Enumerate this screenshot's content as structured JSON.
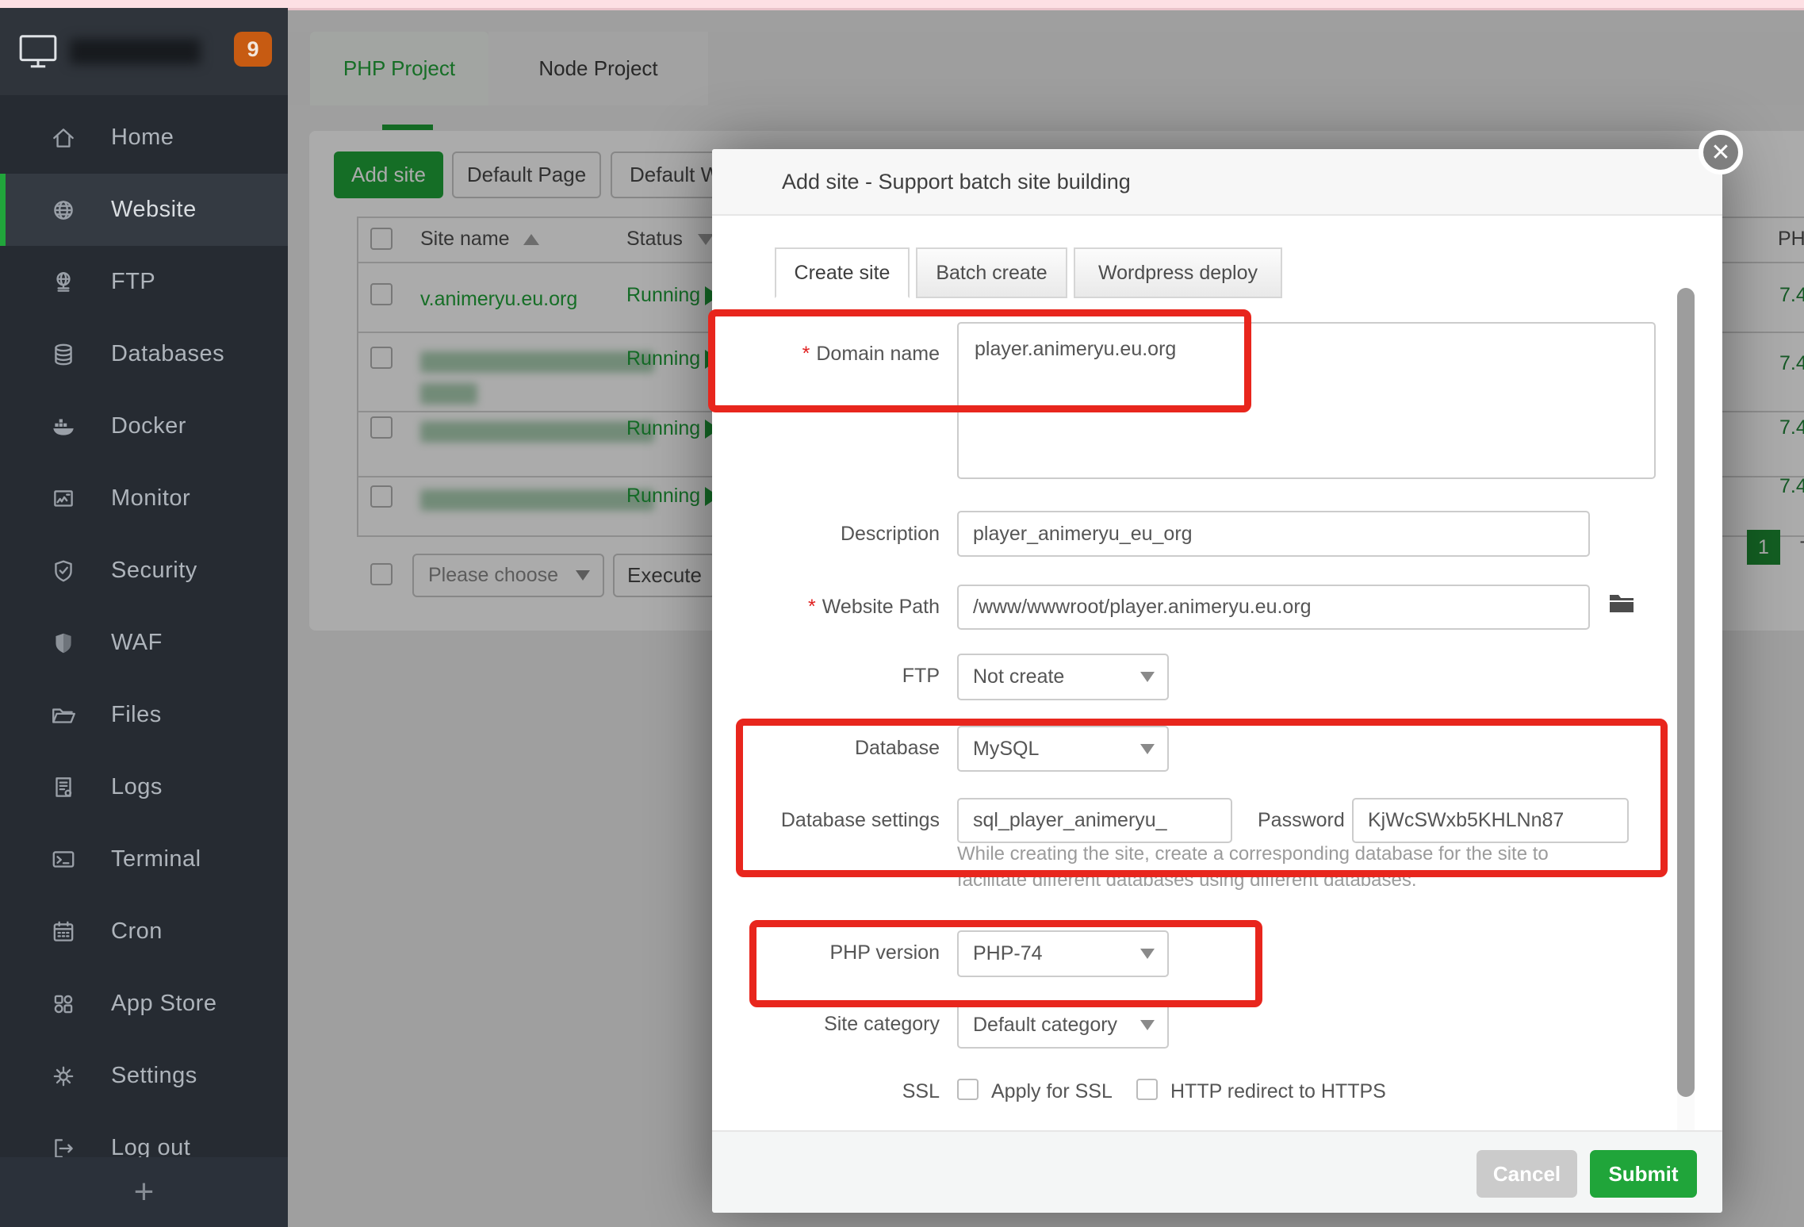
{
  "colors": {
    "accent_green": "#20a53a",
    "annotation_red": "#e8261d",
    "pink_strip": "#fde0e4",
    "badge_orange": "#c75b12",
    "running_green": "#1e9e3a"
  },
  "sidebar": {
    "logo_badge": "9",
    "items": [
      {
        "label": "Home",
        "icon": "home-icon",
        "active": false
      },
      {
        "label": "Website",
        "icon": "globe-icon",
        "active": true
      },
      {
        "label": "FTP",
        "icon": "ftp-icon",
        "active": false
      },
      {
        "label": "Databases",
        "icon": "database-icon",
        "active": false
      },
      {
        "label": "Docker",
        "icon": "docker-icon",
        "active": false
      },
      {
        "label": "Monitor",
        "icon": "monitor-icon",
        "active": false
      },
      {
        "label": "Security",
        "icon": "shield-check-icon",
        "active": false
      },
      {
        "label": "WAF",
        "icon": "shield-solid-icon",
        "active": false
      },
      {
        "label": "Files",
        "icon": "folder-icon",
        "active": false
      },
      {
        "label": "Logs",
        "icon": "log-file-icon",
        "active": false
      },
      {
        "label": "Terminal",
        "icon": "terminal-icon",
        "active": false
      },
      {
        "label": "Cron",
        "icon": "calendar-icon",
        "active": false
      },
      {
        "label": "App Store",
        "icon": "grid-icon",
        "active": false
      },
      {
        "label": "Settings",
        "icon": "gear-icon",
        "active": false
      },
      {
        "label": "Log out",
        "icon": "logout-icon",
        "active": false
      }
    ],
    "plus_label": "+"
  },
  "topbar": {
    "tabs": [
      {
        "label": "PHP Project",
        "active": true
      },
      {
        "label": "Node Project",
        "active": false
      }
    ]
  },
  "toolbar": {
    "add_site": "Add site",
    "default_page": "Default Page",
    "default_doc": "Default W"
  },
  "table": {
    "headers": {
      "site_name": "Site name",
      "status": "Status",
      "php": "PHP"
    },
    "rows": [
      {
        "name": "v.animeryu.eu.org",
        "blurred": false,
        "status": "Running",
        "php": "7.4"
      },
      {
        "name": "",
        "blurred": true,
        "status": "Running",
        "php": "7.4"
      },
      {
        "name": "",
        "blurred": true,
        "status": "Running",
        "php": "7.4"
      },
      {
        "name": "",
        "blurred": true,
        "status": "Running",
        "php": "7.4"
      }
    ],
    "bulk": {
      "placeholder": "Please choose",
      "execute": "Execute"
    },
    "pagination": {
      "page": "1",
      "total_text": "Tot"
    }
  },
  "modal": {
    "title": "Add site - Support batch site building",
    "close_glyph": "✕",
    "tabs": [
      {
        "label": "Create site",
        "active": true
      },
      {
        "label": "Batch create",
        "active": false
      },
      {
        "label": "Wordpress deploy",
        "active": false
      }
    ],
    "fields": {
      "domain": {
        "label": "Domain name",
        "required": true,
        "value": "player.animeryu.eu.org"
      },
      "description": {
        "label": "Description",
        "value": "player_animeryu_eu_org"
      },
      "path": {
        "label": "Website Path",
        "required": true,
        "value": "/www/wwwroot/player.animeryu.eu.org"
      },
      "ftp": {
        "label": "FTP",
        "value": "Not create"
      },
      "database": {
        "label": "Database",
        "value": "MySQL"
      },
      "db_settings": {
        "label": "Database settings",
        "value": "sql_player_animeryu_",
        "password_label": "Password",
        "password_value": "KjWcSWxb5KHLNn87"
      },
      "db_help_line1": "While creating the site, create a corresponding database for the site to",
      "db_help_line2": "facilitate different databases using different databases.",
      "php_version": {
        "label": "PHP version",
        "value": "PHP-74"
      },
      "site_category": {
        "label": "Site category",
        "value": "Default category"
      },
      "ssl": {
        "label": "SSL",
        "option1": "Apply for SSL",
        "option2": "HTTP redirect to HTTPS"
      }
    },
    "footer": {
      "cancel": "Cancel",
      "submit": "Submit"
    }
  }
}
